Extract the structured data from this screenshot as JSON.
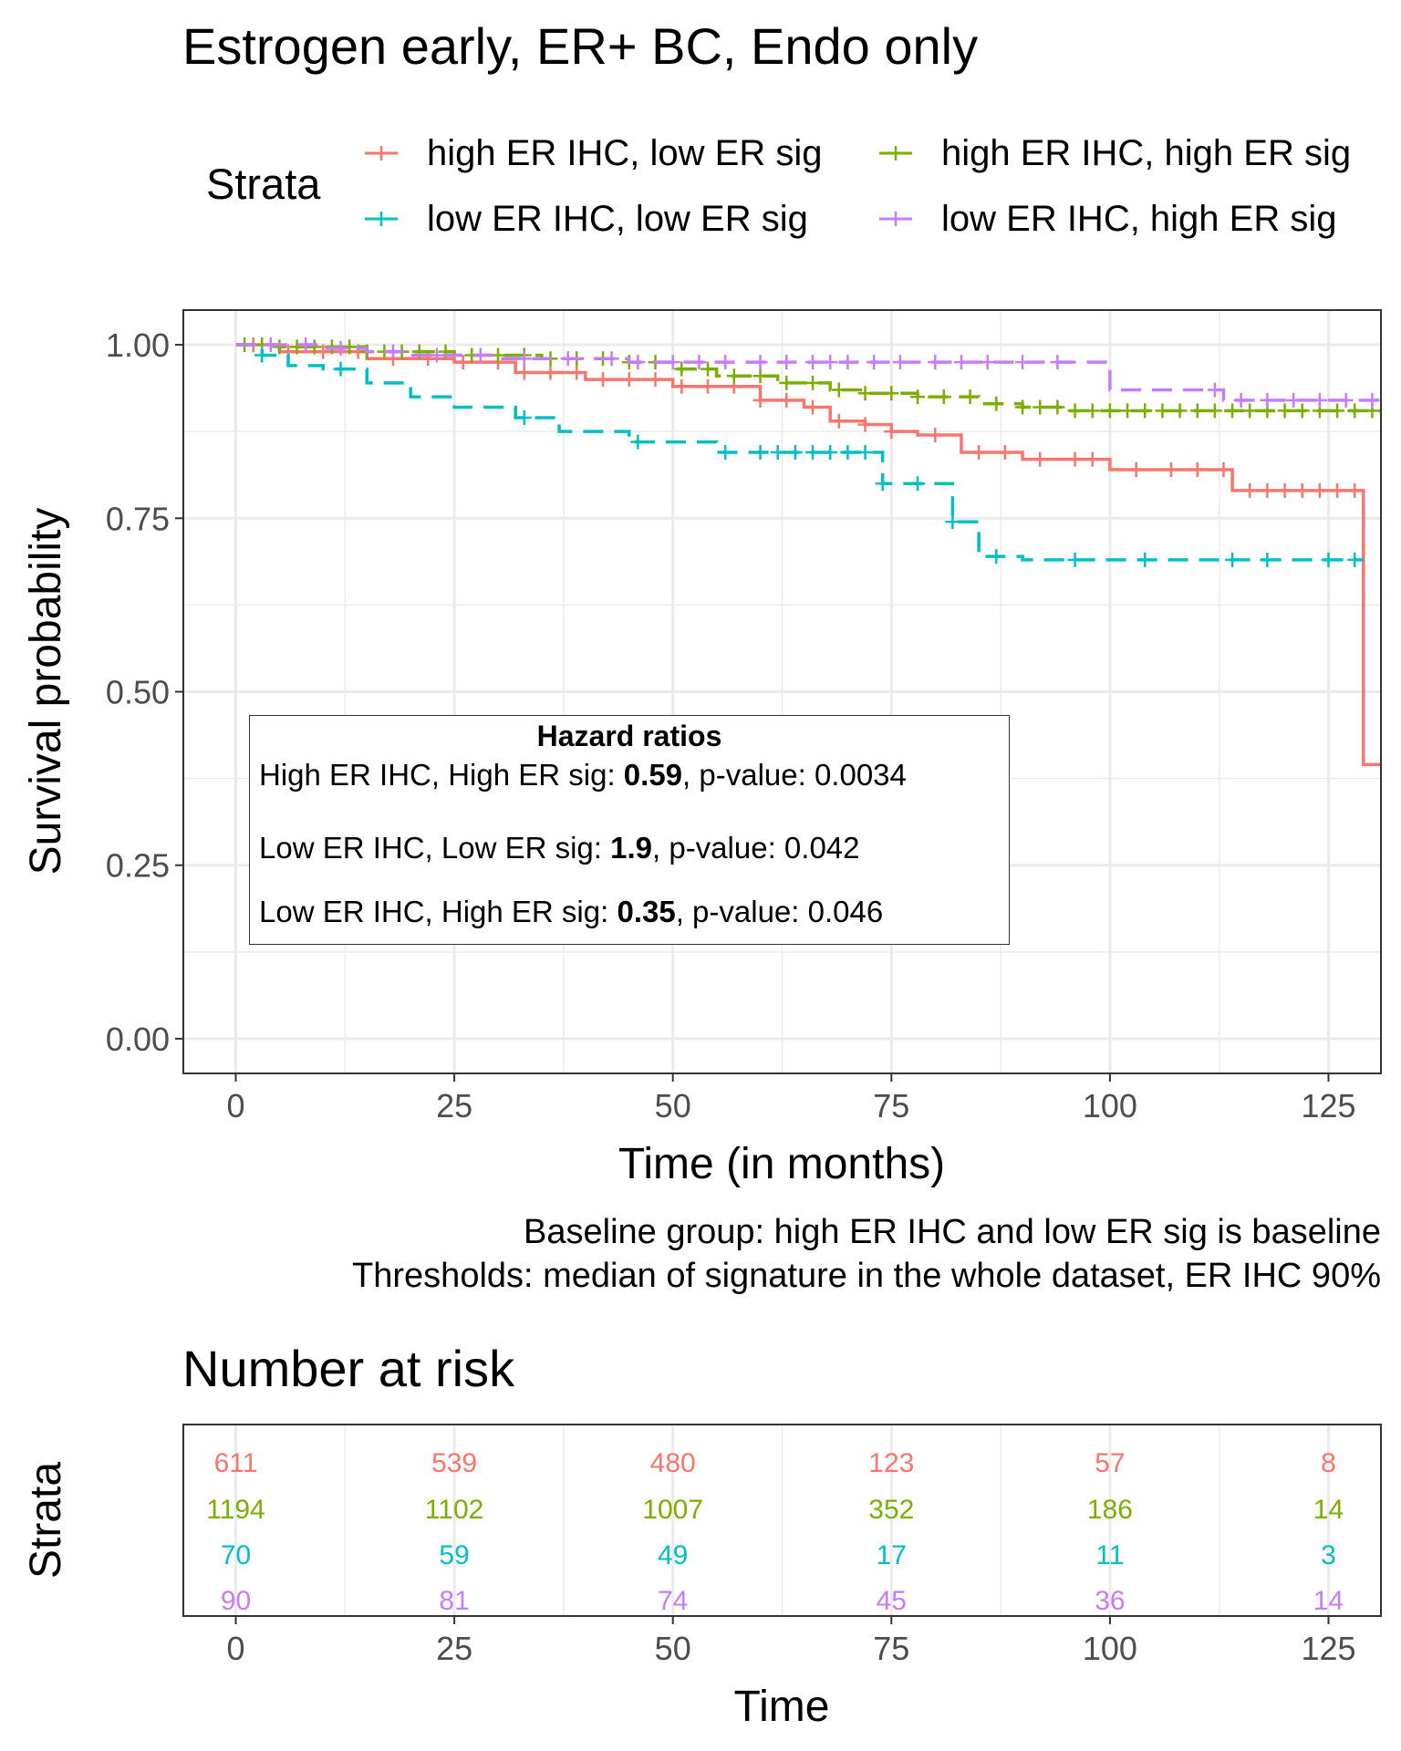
{
  "chart_data": [
    {
      "type": "line",
      "subtype": "kaplan-meier survival curve",
      "title": "Estrogen early, ER+ BC, Endo only",
      "xlabel": "Time (in months)",
      "ylabel": "Survival probability",
      "xlim": [
        -6,
        131
      ],
      "ylim": [
        -0.05,
        1.05
      ],
      "x_ticks": [
        0,
        25,
        50,
        75,
        100,
        125
      ],
      "y_ticks": [
        0.0,
        0.25,
        0.5,
        0.75,
        1.0
      ],
      "x_tick_labels": [
        "0",
        "25",
        "50",
        "75",
        "100",
        "125"
      ],
      "y_tick_labels": [
        "0.00",
        "0.25",
        "0.50",
        "0.75",
        "1.00"
      ],
      "grid": true,
      "legend": {
        "title": "Strata",
        "position": "top",
        "entries": [
          "high ER IHC, low ER sig",
          "high ER IHC, high ER sig",
          "low ER IHC, low ER sig",
          "low ER IHC, high ER sig"
        ]
      },
      "series": [
        {
          "name": "high ER IHC, low ER sig",
          "color": "#F8766D",
          "line_style": "solid",
          "x": [
            0,
            5,
            15,
            25,
            32,
            40,
            50,
            60,
            65,
            68,
            72,
            75,
            78,
            83,
            90,
            95,
            100,
            114,
            129,
            131
          ],
          "y": [
            1.0,
            0.99,
            0.98,
            0.975,
            0.96,
            0.95,
            0.94,
            0.92,
            0.91,
            0.89,
            0.885,
            0.875,
            0.87,
            0.845,
            0.835,
            0.835,
            0.82,
            0.79,
            0.395,
            0.395
          ],
          "censor_x": [
            2,
            6,
            10,
            14,
            18,
            22,
            26,
            30,
            33,
            36,
            39,
            42,
            45,
            48,
            51,
            54,
            57,
            60,
            63,
            66,
            69,
            72,
            75,
            80,
            85,
            88,
            92,
            96,
            98,
            103,
            107,
            110,
            113,
            116,
            118,
            120,
            122,
            124,
            126,
            128
          ]
        },
        {
          "name": "high ER IHC, high ER sig",
          "color": "#7CAE00",
          "line_style": "dashed",
          "x": [
            0,
            5,
            15,
            25,
            35,
            45,
            50,
            55,
            62,
            68,
            72,
            78,
            85,
            90,
            95,
            100,
            131
          ],
          "y": [
            1.0,
            0.997,
            0.99,
            0.985,
            0.98,
            0.975,
            0.965,
            0.955,
            0.945,
            0.935,
            0.93,
            0.925,
            0.915,
            0.91,
            0.905,
            0.905,
            0.905
          ],
          "censor_x": [
            1,
            3,
            5,
            7,
            9,
            11,
            13,
            15,
            17,
            19,
            21,
            24,
            27,
            30,
            33,
            36,
            39,
            42,
            45,
            48,
            51,
            54,
            57,
            60,
            63,
            66,
            69,
            72,
            75,
            78,
            81,
            84,
            87,
            90,
            92,
            94,
            96,
            98,
            100,
            102,
            104,
            106,
            108,
            110,
            112,
            114,
            116,
            118,
            120,
            122,
            124,
            126,
            128,
            130
          ]
        },
        {
          "name": "low ER IHC, low ER sig",
          "color": "#00BFC4",
          "line_style": "dashed",
          "x": [
            0,
            3,
            6,
            10,
            15,
            20,
            25,
            32,
            37,
            45,
            55,
            74,
            82,
            85,
            90,
            100,
            129
          ],
          "y": [
            1.0,
            0.985,
            0.97,
            0.965,
            0.945,
            0.925,
            0.91,
            0.895,
            0.875,
            0.86,
            0.845,
            0.8,
            0.745,
            0.695,
            0.69,
            0.69,
            0.69
          ],
          "censor_x": [
            3,
            12,
            33,
            46,
            56,
            60,
            62,
            64,
            66,
            68,
            70,
            72,
            74,
            78,
            82,
            87,
            96,
            104,
            114,
            118,
            125,
            128
          ]
        },
        {
          "name": "low ER IHC, high ER sig",
          "color": "#C77CFF",
          "line_style": "dashed",
          "x": [
            0,
            10,
            15,
            20,
            30,
            45,
            60,
            75,
            90,
            100,
            113,
            131
          ],
          "y": [
            1.0,
            0.995,
            0.99,
            0.985,
            0.98,
            0.975,
            0.975,
            0.975,
            0.975,
            0.935,
            0.92,
            0.92
          ],
          "censor_x": [
            4,
            8,
            12,
            18,
            23,
            28,
            33,
            38,
            43,
            46,
            50,
            53,
            56,
            60,
            63,
            66,
            68,
            70,
            73,
            76,
            80,
            83,
            86,
            90,
            94,
            112,
            115,
            118,
            121,
            124,
            127,
            130
          ]
        }
      ]
    },
    {
      "type": "table",
      "title": "Number at risk",
      "xlabel": "Time",
      "ylabel": "Strata",
      "x_ticks": [
        0,
        25,
        50,
        75,
        100,
        125
      ],
      "x_tick_labels": [
        "0",
        "25",
        "50",
        "75",
        "100",
        "125"
      ],
      "rows": [
        {
          "name": "high ER IHC, low ER sig",
          "color": "#F8766D",
          "values": [
            "611",
            "539",
            "480",
            "123",
            "57",
            "8"
          ]
        },
        {
          "name": "high ER IHC, high ER sig",
          "color": "#7CAE00",
          "values": [
            "1194",
            "1102",
            "1007",
            "352",
            "186",
            "14"
          ]
        },
        {
          "name": "low ER IHC, low ER sig",
          "color": "#00BFC4",
          "values": [
            "70",
            "59",
            "49",
            "17",
            "11",
            "3"
          ]
        },
        {
          "name": "low ER IHC, high ER sig",
          "color": "#C77CFF",
          "values": [
            "90",
            "81",
            "74",
            "45",
            "36",
            "14"
          ]
        }
      ]
    }
  ],
  "annotations": {
    "hazard_box": {
      "title": "Hazard ratios",
      "rows": [
        {
          "label": "High ER IHC, High ER sig: ",
          "value": "0.59",
          "sep": ", p-value: ",
          "pvalue": "0.0034"
        },
        {
          "label": "Low ER IHC, Low ER sig: ",
          "value": "1.9",
          "sep": ", p-value: ",
          "pvalue": "0.042"
        },
        {
          "label": "Low ER IHC, High ER sig: ",
          "value": "0.35",
          "sep": ", p-value: ",
          "pvalue": "0.046"
        }
      ]
    },
    "caption_line1": "Baseline group: high ER IHC and low ER sig is baseline",
    "caption_line2": "Thresholds: median of signature in the whole dataset, ER IHC 90%"
  }
}
